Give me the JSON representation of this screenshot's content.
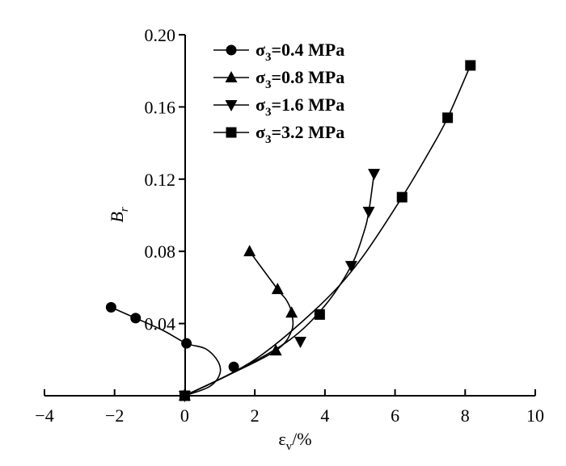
{
  "chart_data": {
    "type": "line",
    "title": "",
    "xlabel": {
      "main": "ε",
      "sub": "v",
      "suffix": "/%"
    },
    "ylabel": {
      "main": "B",
      "sub": "r"
    },
    "xlim": [
      -4,
      10
    ],
    "ylim": [
      0,
      0.2
    ],
    "x_ticks": [
      {
        "value": -4,
        "label": "−4"
      },
      {
        "value": -2,
        "label": "−2"
      },
      {
        "value": 0,
        "label": "0"
      },
      {
        "value": 2,
        "label": "2"
      },
      {
        "value": 4,
        "label": "4"
      },
      {
        "value": 6,
        "label": "6"
      },
      {
        "value": 8,
        "label": "8"
      },
      {
        "value": 10,
        "label": "10"
      }
    ],
    "y_ticks": [
      {
        "value": 0.04,
        "label": "0.04"
      },
      {
        "value": 0.08,
        "label": "0.08"
      },
      {
        "value": 0.12,
        "label": "0.12"
      },
      {
        "value": 0.16,
        "label": "0.16"
      },
      {
        "value": 0.2,
        "label": "0.20"
      }
    ],
    "grid": false,
    "legend_position": "top-left",
    "series": [
      {
        "name": {
          "main": "σ",
          "sub": "3",
          "suffix": "=0.4 MPa"
        },
        "marker": "circle",
        "points": [
          [
            0,
            0
          ],
          [
            1.4,
            0.016
          ],
          [
            0.05,
            0.029
          ],
          [
            -1.4,
            0.043
          ],
          [
            -2.1,
            0.049
          ]
        ],
        "curve": [
          [
            0,
            0
          ],
          [
            0.7,
            0.005
          ],
          [
            1.0,
            0.012
          ],
          [
            0.95,
            0.019
          ],
          [
            0.6,
            0.026
          ],
          [
            0.05,
            0.029
          ],
          [
            -0.6,
            0.036
          ],
          [
            -1.4,
            0.043
          ],
          [
            -2.1,
            0.049
          ]
        ]
      },
      {
        "name": {
          "main": "σ",
          "sub": "3",
          "suffix": "=0.8 MPa"
        },
        "marker": "triangle-up",
        "points": [
          [
            0,
            0
          ],
          [
            2.6,
            0.025
          ],
          [
            3.05,
            0.046
          ],
          [
            2.65,
            0.059
          ],
          [
            1.85,
            0.08
          ]
        ],
        "curve": [
          [
            0,
            0
          ],
          [
            1.2,
            0.011
          ],
          [
            2.6,
            0.025
          ],
          [
            3.05,
            0.036
          ],
          [
            3.05,
            0.046
          ],
          [
            2.9,
            0.053
          ],
          [
            2.65,
            0.059
          ],
          [
            1.85,
            0.08
          ]
        ]
      },
      {
        "name": {
          "main": "σ",
          "sub": "3",
          "suffix": "=1.6 MPa"
        },
        "marker": "triangle-down",
        "points": [
          [
            0,
            0
          ],
          [
            3.3,
            0.03
          ],
          [
            4.75,
            0.072
          ],
          [
            5.25,
            0.102
          ],
          [
            5.4,
            0.123
          ]
        ],
        "curve": [
          [
            0,
            0
          ],
          [
            1.5,
            0.014
          ],
          [
            3.0,
            0.031
          ],
          [
            4.0,
            0.05
          ],
          [
            4.75,
            0.072
          ],
          [
            5.1,
            0.09
          ],
          [
            5.25,
            0.102
          ],
          [
            5.4,
            0.123
          ]
        ]
      },
      {
        "name": {
          "main": "σ",
          "sub": "3",
          "suffix": "=3.2 MPa"
        },
        "marker": "square",
        "points": [
          [
            0,
            0
          ],
          [
            3.85,
            0.045
          ],
          [
            6.2,
            0.11
          ],
          [
            7.5,
            0.154
          ],
          [
            8.15,
            0.183
          ]
        ],
        "curve": [
          [
            0,
            0
          ],
          [
            2.0,
            0.02
          ],
          [
            3.85,
            0.05
          ],
          [
            5.0,
            0.075
          ],
          [
            6.2,
            0.11
          ],
          [
            7.0,
            0.136
          ],
          [
            7.5,
            0.154
          ],
          [
            8.15,
            0.183
          ]
        ]
      }
    ]
  }
}
